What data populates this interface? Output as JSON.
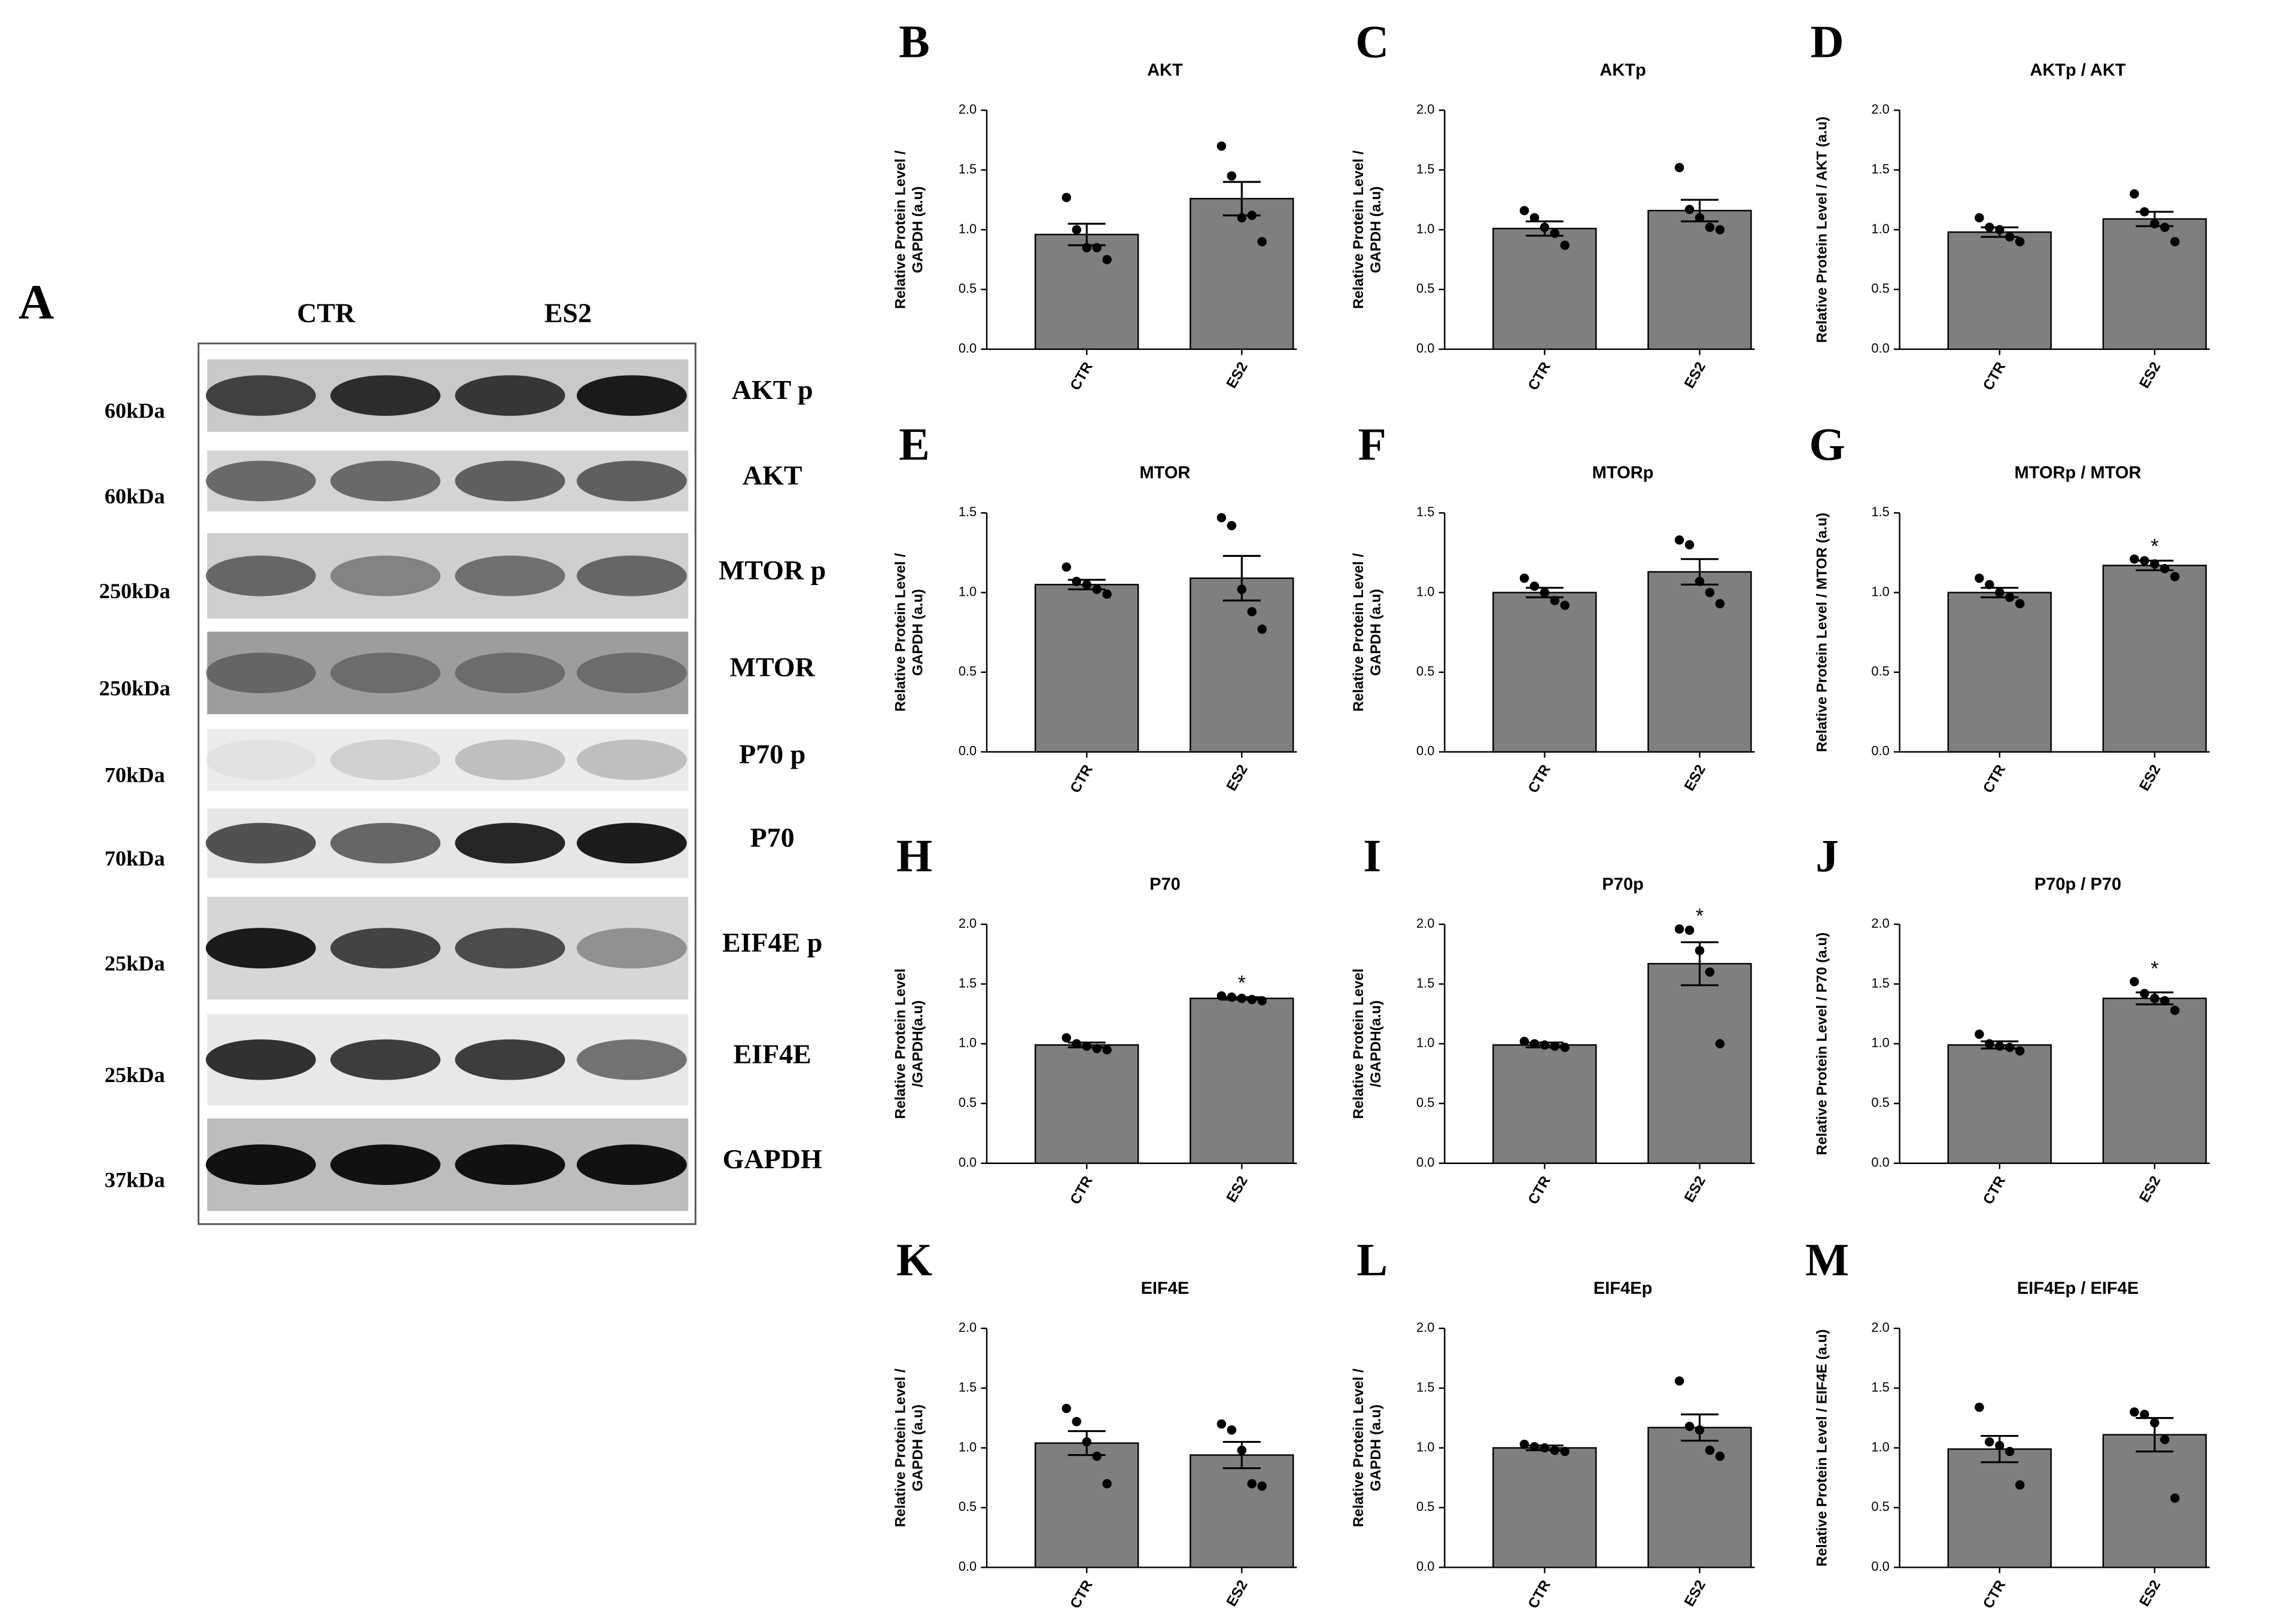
{
  "blot": {
    "label": "A",
    "lanes": [
      "CTR",
      "ES2"
    ],
    "rows": [
      {
        "protein": "AKT p",
        "size": "60kDa"
      },
      {
        "protein": "AKT",
        "size": "60kDa"
      },
      {
        "protein": "MTOR p",
        "size": "250kDa"
      },
      {
        "protein": "MTOR",
        "size": "250kDa"
      },
      {
        "protein": "P70 p",
        "size": "70kDa"
      },
      {
        "protein": "P70",
        "size": "70kDa"
      },
      {
        "protein": "EIF4E p",
        "size": "25kDa"
      },
      {
        "protein": "EIF4E",
        "size": "25kDa"
      },
      {
        "protein": "GAPDH",
        "size": "37kDa"
      }
    ]
  },
  "chart_data": [
    {
      "type": "bar",
      "panel": "B",
      "title": "AKT",
      "ylabel": [
        "Relative Protein Level /",
        "GAPDH (a.u)"
      ],
      "categories": [
        "CTR",
        "ES2"
      ],
      "color": "#7f7f7f",
      "values": [
        0.96,
        1.26
      ],
      "errors": [
        0.09,
        0.14
      ],
      "points": [
        [
          1.27,
          1.0,
          0.85,
          0.85,
          0.75
        ],
        [
          1.7,
          1.45,
          1.1,
          1.12,
          0.9
        ]
      ],
      "ylim": [
        0,
        2
      ],
      "yticks": [
        {
          "value": 0,
          "label": "0.0"
        },
        0.5,
        {
          "value": 1,
          "label": "1.0"
        },
        1.5,
        {
          "value": 2,
          "label": "2.0"
        }
      ]
    },
    {
      "type": "bar",
      "panel": "C",
      "title": "AKTp",
      "ylabel": [
        "Relative Protein Level /",
        "GAPDH (a.u)"
      ],
      "categories": [
        "CTR",
        "ES2"
      ],
      "color": "#7f7f7f",
      "values": [
        1.01,
        1.16
      ],
      "errors": [
        0.06,
        0.09
      ],
      "points": [
        [
          1.16,
          1.1,
          1.02,
          0.97,
          0.87
        ],
        [
          1.52,
          1.17,
          1.1,
          1.02,
          1.0
        ]
      ],
      "ylim": [
        0,
        2
      ],
      "yticks": [
        {
          "value": 0,
          "label": "0.0"
        },
        0.5,
        {
          "value": 1,
          "label": "1.0"
        },
        1.5,
        {
          "value": 2,
          "label": "2.0"
        }
      ]
    },
    {
      "type": "bar",
      "panel": "D",
      "title": "AKTp / AKT",
      "ylabel": [
        "Relative Protein Level / AKT (a.u)"
      ],
      "categories": [
        "CTR",
        "ES2"
      ],
      "color": "#7f7f7f",
      "values": [
        0.98,
        1.09
      ],
      "errors": [
        0.04,
        0.06
      ],
      "points": [
        [
          1.1,
          1.02,
          1.0,
          0.94,
          0.9
        ],
        [
          1.3,
          1.15,
          1.05,
          1.02,
          0.9
        ]
      ],
      "ylim": [
        0,
        2
      ],
      "yticks": [
        {
          "value": 0,
          "label": "0.0"
        },
        0.5,
        {
          "value": 1,
          "label": "1.0"
        },
        1.5,
        {
          "value": 2,
          "label": "2.0"
        }
      ]
    },
    {
      "type": "bar",
      "panel": "E",
      "title": "MTOR",
      "ylabel": [
        "Relative Protein Level /",
        "GAPDH (a.u)"
      ],
      "categories": [
        "CTR",
        "ES2"
      ],
      "color": "#7f7f7f",
      "values": [
        1.05,
        1.09
      ],
      "errors": [
        0.03,
        0.14
      ],
      "points": [
        [
          1.16,
          1.07,
          1.05,
          1.02,
          0.99
        ],
        [
          1.47,
          1.42,
          1.02,
          0.88,
          0.77
        ]
      ],
      "ylim": [
        0,
        1.5
      ],
      "yticks": [
        {
          "value": 0,
          "label": "0.0"
        },
        0.5,
        {
          "value": 1,
          "label": "1.0"
        },
        1.5
      ]
    },
    {
      "type": "bar",
      "panel": "F",
      "title": "MTORp",
      "ylabel": [
        "Relative Protein Level /",
        "GAPDH (a.u)"
      ],
      "categories": [
        "CTR",
        "ES2"
      ],
      "color": "#7f7f7f",
      "values": [
        1.0,
        1.13
      ],
      "errors": [
        0.03,
        0.08
      ],
      "points": [
        [
          1.09,
          1.04,
          1.0,
          0.95,
          0.92
        ],
        [
          1.33,
          1.3,
          1.07,
          1.0,
          0.93
        ]
      ],
      "ylim": [
        0,
        1.5
      ],
      "yticks": [
        {
          "value": 0,
          "label": "0.0"
        },
        0.5,
        {
          "value": 1,
          "label": "1.0"
        },
        1.5
      ]
    },
    {
      "type": "bar",
      "panel": "G",
      "title": "MTORp / MTOR",
      "ylabel": [
        "Relative Protein Level / MTOR (a.u)"
      ],
      "categories": [
        "CTR",
        "ES2"
      ],
      "color": "#7f7f7f",
      "values": [
        1.0,
        1.17
      ],
      "errors": [
        0.03,
        0.03
      ],
      "points": [
        [
          1.09,
          1.05,
          1.0,
          0.97,
          0.93
        ],
        [
          1.21,
          1.2,
          1.18,
          1.15,
          1.1
        ]
      ],
      "annotations": [
        {
          "x": "ES2",
          "text": "*"
        }
      ],
      "ylim": [
        0,
        1.5
      ],
      "yticks": [
        {
          "value": 0,
          "label": "0.0"
        },
        0.5,
        {
          "value": 1,
          "label": "1.0"
        },
        1.5
      ]
    },
    {
      "type": "bar",
      "panel": "H",
      "title": "P70",
      "ylabel": [
        "Relative Protein Level",
        "/GAPDH(a.u)"
      ],
      "categories": [
        "CTR",
        "ES2"
      ],
      "color": "#7f7f7f",
      "values": [
        0.99,
        1.38
      ],
      "errors": [
        0.02,
        0.01
      ],
      "points": [
        [
          1.05,
          1.0,
          0.98,
          0.96,
          0.95
        ],
        [
          1.4,
          1.39,
          1.38,
          1.37,
          1.36
        ]
      ],
      "annotations": [
        {
          "x": "ES2",
          "text": "*"
        }
      ],
      "ylim": [
        0,
        2
      ],
      "yticks": [
        {
          "value": 0,
          "label": "0.0"
        },
        0.5,
        {
          "value": 1,
          "label": "1.0"
        },
        1.5,
        {
          "value": 2,
          "label": "2.0"
        }
      ]
    },
    {
      "type": "bar",
      "panel": "I",
      "title": "P70p",
      "ylabel": [
        "Relative Protein Level",
        "/GAPDH(a.u)"
      ],
      "categories": [
        "CTR",
        "ES2"
      ],
      "color": "#7f7f7f",
      "values": [
        0.99,
        1.67
      ],
      "errors": [
        0.02,
        0.18
      ],
      "points": [
        [
          1.02,
          1.0,
          0.99,
          0.98,
          0.97
        ],
        [
          1.96,
          1.95,
          1.78,
          1.6,
          1.0
        ]
      ],
      "annotations": [
        {
          "x": "ES2",
          "text": "*"
        }
      ],
      "ylim": [
        0,
        2
      ],
      "yticks": [
        {
          "value": 0,
          "label": "0.0"
        },
        0.5,
        {
          "value": 1,
          "label": "1.0"
        },
        1.5,
        {
          "value": 2,
          "label": "2.0"
        }
      ]
    },
    {
      "type": "bar",
      "panel": "J",
      "title": "P70p / P70",
      "ylabel": [
        "Relative Protein Level / P70 (a.u)"
      ],
      "categories": [
        "CTR",
        "ES2"
      ],
      "color": "#7f7f7f",
      "values": [
        0.99,
        1.38
      ],
      "errors": [
        0.03,
        0.05
      ],
      "points": [
        [
          1.08,
          1.0,
          0.98,
          0.97,
          0.94
        ],
        [
          1.52,
          1.42,
          1.38,
          1.36,
          1.28
        ]
      ],
      "annotations": [
        {
          "x": "ES2",
          "text": "*"
        }
      ],
      "ylim": [
        0,
        2
      ],
      "yticks": [
        {
          "value": 0,
          "label": "0.0"
        },
        0.5,
        {
          "value": 1,
          "label": "1.0"
        },
        1.5,
        {
          "value": 2,
          "label": "2.0"
        }
      ]
    },
    {
      "type": "bar",
      "panel": "K",
      "title": "EIF4E",
      "ylabel": [
        "Relative Protein Level /",
        "GAPDH (a.u)"
      ],
      "categories": [
        "CTR",
        "ES2"
      ],
      "color": "#7f7f7f",
      "values": [
        1.04,
        0.94
      ],
      "errors": [
        0.1,
        0.11
      ],
      "points": [
        [
          1.33,
          1.22,
          1.05,
          0.93,
          0.7
        ],
        [
          1.2,
          1.15,
          0.98,
          0.7,
          0.68
        ]
      ],
      "ylim": [
        0,
        2
      ],
      "yticks": [
        {
          "value": 0,
          "label": "0.0"
        },
        0.5,
        {
          "value": 1,
          "label": "1.0"
        },
        1.5,
        {
          "value": 2,
          "label": "2.0"
        }
      ]
    },
    {
      "type": "bar",
      "panel": "L",
      "title": "EIF4Ep",
      "ylabel": [
        "Relative Protein Level /",
        "GAPDH (a.u)"
      ],
      "categories": [
        "CTR",
        "ES2"
      ],
      "color": "#7f7f7f",
      "values": [
        1.0,
        1.17
      ],
      "errors": [
        0.02,
        0.11
      ],
      "points": [
        [
          1.03,
          1.01,
          1.0,
          0.98,
          0.97
        ],
        [
          1.56,
          1.18,
          1.15,
          0.98,
          0.93
        ]
      ],
      "ylim": [
        0,
        2
      ],
      "yticks": [
        {
          "value": 0,
          "label": "0.0"
        },
        0.5,
        {
          "value": 1,
          "label": "1.0"
        },
        1.5,
        {
          "value": 2,
          "label": "2.0"
        }
      ]
    },
    {
      "type": "bar",
      "panel": "M",
      "title": "EIF4Ep / EIF4E",
      "ylabel": [
        "Relative Protein Level / EIF4E (a.u)"
      ],
      "categories": [
        "CTR",
        "ES2"
      ],
      "color": "#7f7f7f",
      "values": [
        0.99,
        1.11
      ],
      "errors": [
        0.11,
        0.14
      ],
      "points": [
        [
          1.34,
          1.05,
          1.02,
          0.97,
          0.69
        ],
        [
          1.3,
          1.28,
          1.21,
          1.07,
          0.58
        ]
      ],
      "ylim": [
        0,
        2
      ],
      "yticks": [
        {
          "value": 0,
          "label": "0.0"
        },
        0.5,
        {
          "value": 1,
          "label": "1.0"
        },
        1.5,
        {
          "value": 2,
          "label": "2.0"
        }
      ]
    }
  ]
}
